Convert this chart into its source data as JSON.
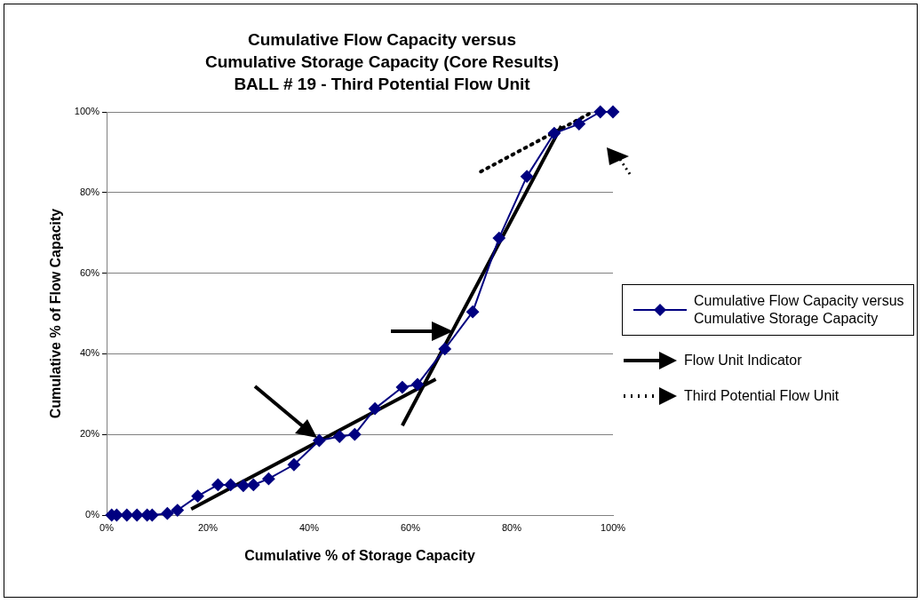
{
  "chart_data": {
    "type": "line",
    "title": "Cumulative Flow Capacity  versus\nCumulative Storage Capacity  (Core Results)\nBALL # 19 - Third Potential Flow Unit",
    "xlabel": "Cumulative % of Storage Capacity",
    "ylabel": "Cumulative % of Flow Capacity",
    "xlim": [
      0,
      100
    ],
    "ylim": [
      0,
      100
    ],
    "xticks": [
      {
        "value": 0,
        "label": "0%"
      },
      {
        "value": 20,
        "label": "20%"
      },
      {
        "value": 40,
        "label": "40%"
      },
      {
        "value": 60,
        "label": "60%"
      },
      {
        "value": 80,
        "label": "80%"
      },
      {
        "value": 100,
        "label": "100%"
      }
    ],
    "yticks": [
      {
        "value": 0,
        "label": "0%"
      },
      {
        "value": 20,
        "label": "20%"
      },
      {
        "value": 40,
        "label": "40%"
      },
      {
        "value": 60,
        "label": "60%"
      },
      {
        "value": 80,
        "label": "80%"
      },
      {
        "value": 100,
        "label": "100%"
      }
    ],
    "grid": "y",
    "legend": "right",
    "series": [
      {
        "name": "Cumulative Flow Capacity versus\nCumulative Storage Capacity",
        "type": "line",
        "color": "#000080",
        "marker": "diamond",
        "line_style": "solid",
        "x": [
          1,
          2,
          4,
          6,
          8,
          9,
          12,
          14,
          18,
          22,
          24.5,
          27,
          29,
          32,
          37,
          42,
          46,
          49,
          53,
          58.4,
          61.4,
          66.8,
          72.3,
          77.5,
          83,
          88.4,
          93.3,
          97.5,
          100
        ],
        "values": [
          0,
          0,
          0,
          0,
          0,
          0,
          0.4,
          1.2,
          4.7,
          7.5,
          7.5,
          7.3,
          7.5,
          9,
          12.5,
          18.5,
          19.5,
          20,
          26.4,
          31.7,
          32.4,
          41.2,
          50.4,
          68.7,
          84,
          94.7,
          97,
          100,
          100
        ]
      },
      {
        "name": "Flow Unit Indicator",
        "type": "line",
        "color": "#000000",
        "marker": "none",
        "line_style": "solid",
        "x": [
          16.7,
          65,
          62,
          58.4,
          89.8
        ],
        "values": [
          1.5,
          33.7,
          null,
          22.2,
          96.5
        ]
      },
      {
        "name": "Third Potential Flow Unit",
        "type": "line",
        "color": "#000000",
        "marker": "none",
        "line_style": "dotted",
        "x": [
          73.9,
          96
        ],
        "values": [
          85.2,
          100
        ]
      }
    ]
  }
}
